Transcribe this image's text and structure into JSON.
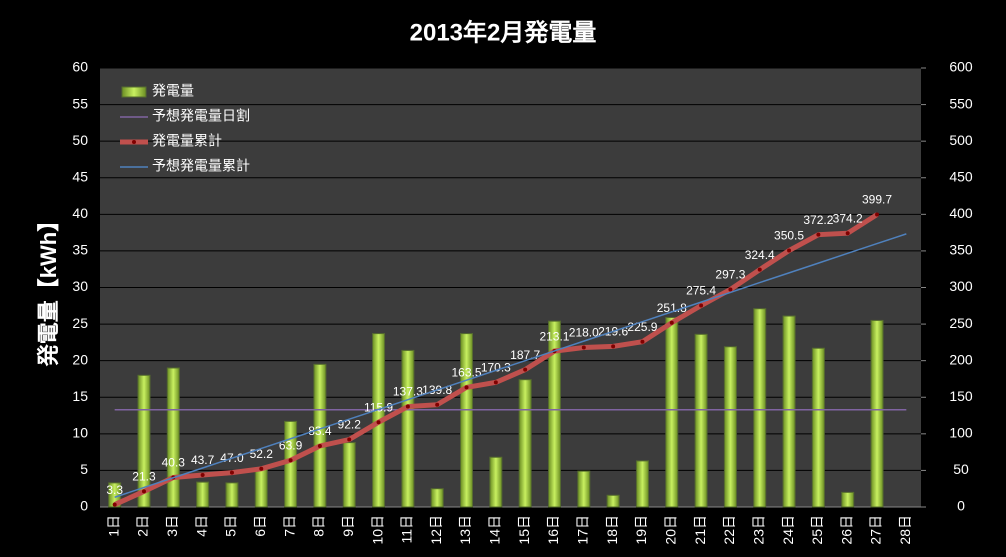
{
  "chart_data": {
    "type": "combo",
    "title": "2013年2月発電量",
    "y_label": "発電量【kWh】",
    "categories": [
      "1日",
      "2日",
      "3日",
      "4日",
      "5日",
      "6日",
      "7日",
      "8日",
      "9日",
      "10日",
      "11日",
      "12日",
      "13日",
      "14日",
      "15日",
      "16日",
      "17日",
      "18日",
      "19日",
      "20日",
      "21日",
      "22日",
      "23日",
      "24日",
      "25日",
      "26日",
      "27日",
      "28日"
    ],
    "ylim": [
      0,
      60
    ],
    "yticks": [
      0,
      5,
      10,
      15,
      20,
      25,
      30,
      35,
      40,
      45,
      50,
      55,
      60
    ],
    "y2lim": [
      0,
      600
    ],
    "y2ticks": [
      0,
      50,
      100,
      150,
      200,
      250,
      300,
      350,
      400,
      450,
      500,
      550,
      600
    ],
    "grid": true,
    "legend": "upper left",
    "series": [
      {
        "name": "発電量",
        "type": "bar",
        "color": "#9acd32",
        "values": [
          3.3,
          18.0,
          19.0,
          3.4,
          3.3,
          5.2,
          11.7,
          19.5,
          8.8,
          23.7,
          21.4,
          2.5,
          23.7,
          6.8,
          17.4,
          25.4,
          4.9,
          1.6,
          6.3,
          25.9,
          23.6,
          21.9,
          27.1,
          26.1,
          21.7,
          2.0,
          25.5,
          null
        ]
      },
      {
        "name": "予想発電量日割",
        "type": "line",
        "color": "#8064a2",
        "values": [
          13.3,
          13.3,
          13.3,
          13.3,
          13.3,
          13.3,
          13.3,
          13.3,
          13.3,
          13.3,
          13.3,
          13.3,
          13.3,
          13.3,
          13.3,
          13.3,
          13.3,
          13.3,
          13.3,
          13.3,
          13.3,
          13.3,
          13.3,
          13.3,
          13.3,
          13.3,
          13.3,
          13.3
        ]
      },
      {
        "name": "発電量累計",
        "type": "line",
        "color": "#c0504d",
        "axis": "y2",
        "markers": true,
        "values": [
          3.3,
          21.3,
          40.3,
          43.7,
          47.0,
          52.2,
          63.9,
          83.4,
          92.2,
          115.9,
          137.3,
          139.8,
          163.5,
          170.3,
          187.7,
          213.1,
          218.0,
          219.6,
          225.9,
          251.8,
          275.4,
          297.3,
          324.4,
          350.5,
          372.2,
          374.2,
          399.7,
          null
        ],
        "value_labels": [
          "3.3",
          "21.3",
          "40.3",
          "43.7",
          "47.0",
          "52.2",
          "63.9",
          "83.4",
          "92.2",
          "115.9",
          "137.3",
          "139.8",
          "163.5",
          "170.3",
          "187.7",
          "213.1",
          "218.0",
          "219.6",
          "225.9",
          "251.8",
          "275.4",
          "297.3",
          "324.4",
          "350.5",
          "372.2",
          "374.2",
          "399.7",
          null
        ]
      },
      {
        "name": "予想発電量累計",
        "type": "line",
        "color": "#4f81bd",
        "axis": "y2",
        "values": [
          13.3,
          26.7,
          40.0,
          53.3,
          66.7,
          80.0,
          93.3,
          106.7,
          120.0,
          133.3,
          146.7,
          160.0,
          173.3,
          186.7,
          200.0,
          213.3,
          226.7,
          240.0,
          253.3,
          266.7,
          280.0,
          293.3,
          306.7,
          320.0,
          333.3,
          346.7,
          360.0,
          373.3
        ]
      }
    ]
  }
}
